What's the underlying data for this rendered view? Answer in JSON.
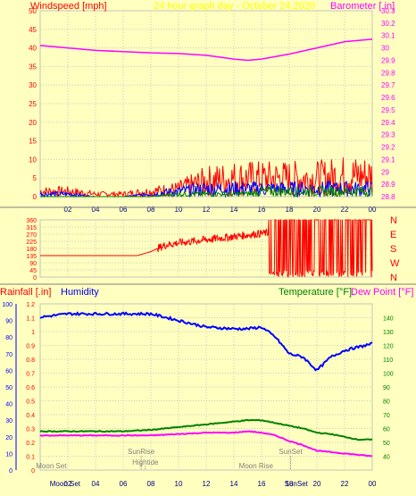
{
  "header": {
    "left_title": "Windspeed [mph]",
    "center_title": "24 hour graph day - October 24,2020",
    "right_title": "Barometer [.in]"
  },
  "wind_dir_labels": [
    "N",
    "W",
    "S",
    "E",
    "N"
  ],
  "lower_header": {
    "rainfall": "Rainfall [.in]",
    "humidity": "Humidity",
    "temperature": "Temperature [°F]",
    "dewpoint": "Dew Point [°F]"
  },
  "annotations": {
    "moon_set": "Moon Set",
    "sunrise": "SunRise",
    "hightide": "Hightide",
    "moon_rise": "Moon Rise",
    "sunset": "SunSet"
  },
  "colors": {
    "background": "#ffffc0",
    "wind": "#ff0000",
    "gust": "#0000ff",
    "wind_green": "#008000",
    "barometer": "#ff00ff",
    "direction": "#ff0000",
    "humidity": "#0000ff",
    "temperature": "#008000",
    "dewpoint": "#ff00ff",
    "title_yellow": "#ffff00"
  },
  "chart_data": [
    {
      "type": "line",
      "title": "24 hour graph day - October 24,2020",
      "xlabel": "",
      "x_ticks": [
        "02",
        "04",
        "06",
        "08",
        "10",
        "12",
        "14",
        "16",
        "18",
        "20",
        "22",
        "00"
      ],
      "ylabel": "Windspeed [mph]",
      "ylim": [
        0,
        50
      ],
      "y_ticks": [
        0,
        5,
        10,
        15,
        20,
        25,
        30,
        35,
        40,
        45,
        50
      ],
      "y2label": "Barometer [.in]",
      "y2lim": [
        28.8,
        30.3
      ],
      "y2_ticks": [
        "28.8",
        "28.9",
        "29",
        "29.1",
        "29.2",
        "29.3",
        "29.4",
        "29.5",
        "29.6",
        "29.7",
        "29.8",
        "29.9",
        "30",
        "30.1",
        "30.2",
        "30.3"
      ],
      "x": [
        0,
        2,
        4,
        6,
        8,
        10,
        12,
        14,
        15,
        16,
        18,
        20,
        22,
        24
      ],
      "series": [
        {
          "axis": "y2",
          "values": [
            30.02,
            30.0,
            29.98,
            29.97,
            29.96,
            29.955,
            29.94,
            29.91,
            29.9,
            29.91,
            29.95,
            30.0,
            30.05,
            30.07
          ]
        },
        {
          "axis": "y",
          "values": [
            2,
            2,
            1,
            1,
            2,
            3,
            6,
            7,
            7,
            7,
            7,
            7,
            8,
            8
          ]
        },
        {
          "axis": "y",
          "values": [
            1,
            1,
            0,
            0,
            1,
            2,
            3,
            3,
            3,
            3,
            3,
            3,
            3,
            3
          ]
        },
        {
          "axis": "y",
          "values": [
            0,
            0,
            0,
            0,
            0,
            1,
            1,
            1,
            1,
            2,
            2,
            2,
            2,
            2
          ]
        }
      ],
      "grid": true
    },
    {
      "type": "line",
      "ylabel": "",
      "ylim": [
        0,
        360
      ],
      "y_ticks": [
        0,
        45,
        90,
        135,
        180,
        225,
        270,
        315,
        360
      ],
      "y_right_labels": [
        "N",
        "W",
        "S",
        "E",
        "N"
      ],
      "x": [
        0,
        7,
        8,
        9,
        10,
        12,
        14,
        16,
        17,
        20,
        24
      ],
      "series": [
        {
          "values": [
            135,
            135,
            160,
            200,
            215,
            235,
            255,
            275,
            280,
            250,
            250
          ]
        }
      ],
      "grid": true
    },
    {
      "type": "line",
      "x_ticks": [
        "02",
        "04",
        "06",
        "08",
        "10",
        "12",
        "14",
        "16",
        "18",
        "20",
        "22",
        "00"
      ],
      "ylabel": "Rainfall [.in]",
      "ylim": [
        0,
        1.2
      ],
      "y_ticks": [
        "0",
        "0.1",
        "0.2",
        "0.3",
        "0.4",
        "0.5",
        "0.6",
        "0.7",
        "0.8",
        "0.9",
        "1",
        "1.1",
        "1.2"
      ],
      "y_left2_label": "Humidity",
      "y_left2_lim": [
        0,
        100
      ],
      "y_left2_ticks": [
        0,
        10,
        20,
        30,
        40,
        50,
        60,
        70,
        80,
        90,
        100
      ],
      "y2label": "Temperature [°F]",
      "y2lim": [
        30,
        150
      ],
      "y2_ticks": [
        40,
        50,
        60,
        70,
        80,
        90,
        100,
        110,
        120,
        130,
        140
      ],
      "x": [
        0,
        2,
        4,
        6,
        8,
        10,
        12,
        14,
        15,
        16,
        17,
        18,
        19,
        20,
        21,
        22,
        23,
        24
      ],
      "series": [
        {
          "name": "Humidity",
          "axis": "y_left2",
          "values": [
            92,
            94,
            94,
            94,
            94,
            90,
            86,
            85,
            85,
            86,
            80,
            70,
            68,
            60,
            68,
            72,
            74,
            76
          ]
        },
        {
          "name": "Temperature [°F]",
          "axis": "y2",
          "values": [
            58,
            58,
            58,
            58,
            59,
            61,
            63,
            65,
            66,
            66,
            64,
            62,
            60,
            57,
            56,
            54,
            52,
            52
          ]
        },
        {
          "name": "Dew Point [°F]",
          "axis": "y2",
          "values": [
            55,
            55,
            55,
            55,
            55,
            56,
            57,
            57,
            58,
            57,
            55,
            51,
            48,
            44,
            43,
            42,
            41,
            40
          ]
        }
      ],
      "grid": true
    }
  ]
}
